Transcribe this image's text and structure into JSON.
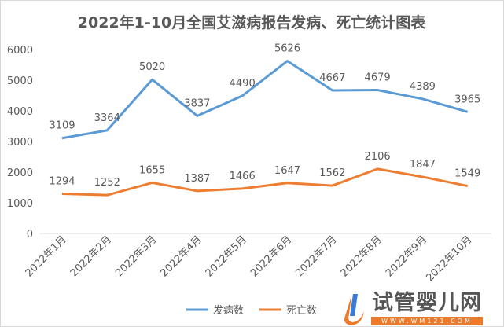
{
  "chart_data": {
    "type": "line",
    "title": "2022年1-10月全国艾滋病报告发病、死亡统计图表",
    "categories": [
      "2022年1月",
      "2022年2月",
      "2022年3月",
      "2022年4月",
      "2022年5月",
      "2022年6月",
      "2022年7月",
      "2022年8月",
      "2022年9月",
      "2022年10月"
    ],
    "series": [
      {
        "name": "发病数",
        "color": "#5b9bd5",
        "values": [
          3109,
          3364,
          5020,
          3837,
          4490,
          5626,
          4667,
          4679,
          4389,
          3965
        ]
      },
      {
        "name": "死亡数",
        "color": "#ed7d31",
        "values": [
          1294,
          1252,
          1655,
          1387,
          1466,
          1647,
          1562,
          2106,
          1847,
          1549
        ]
      }
    ],
    "ylim": [
      0,
      6000
    ],
    "yticks": [
      0,
      1000,
      2000,
      3000,
      4000,
      5000,
      6000
    ],
    "grid": false,
    "legend": "bottom",
    "data_labels": true
  },
  "watermark": {
    "name": "试管婴儿网",
    "url": "WWW.WM121.COM"
  }
}
